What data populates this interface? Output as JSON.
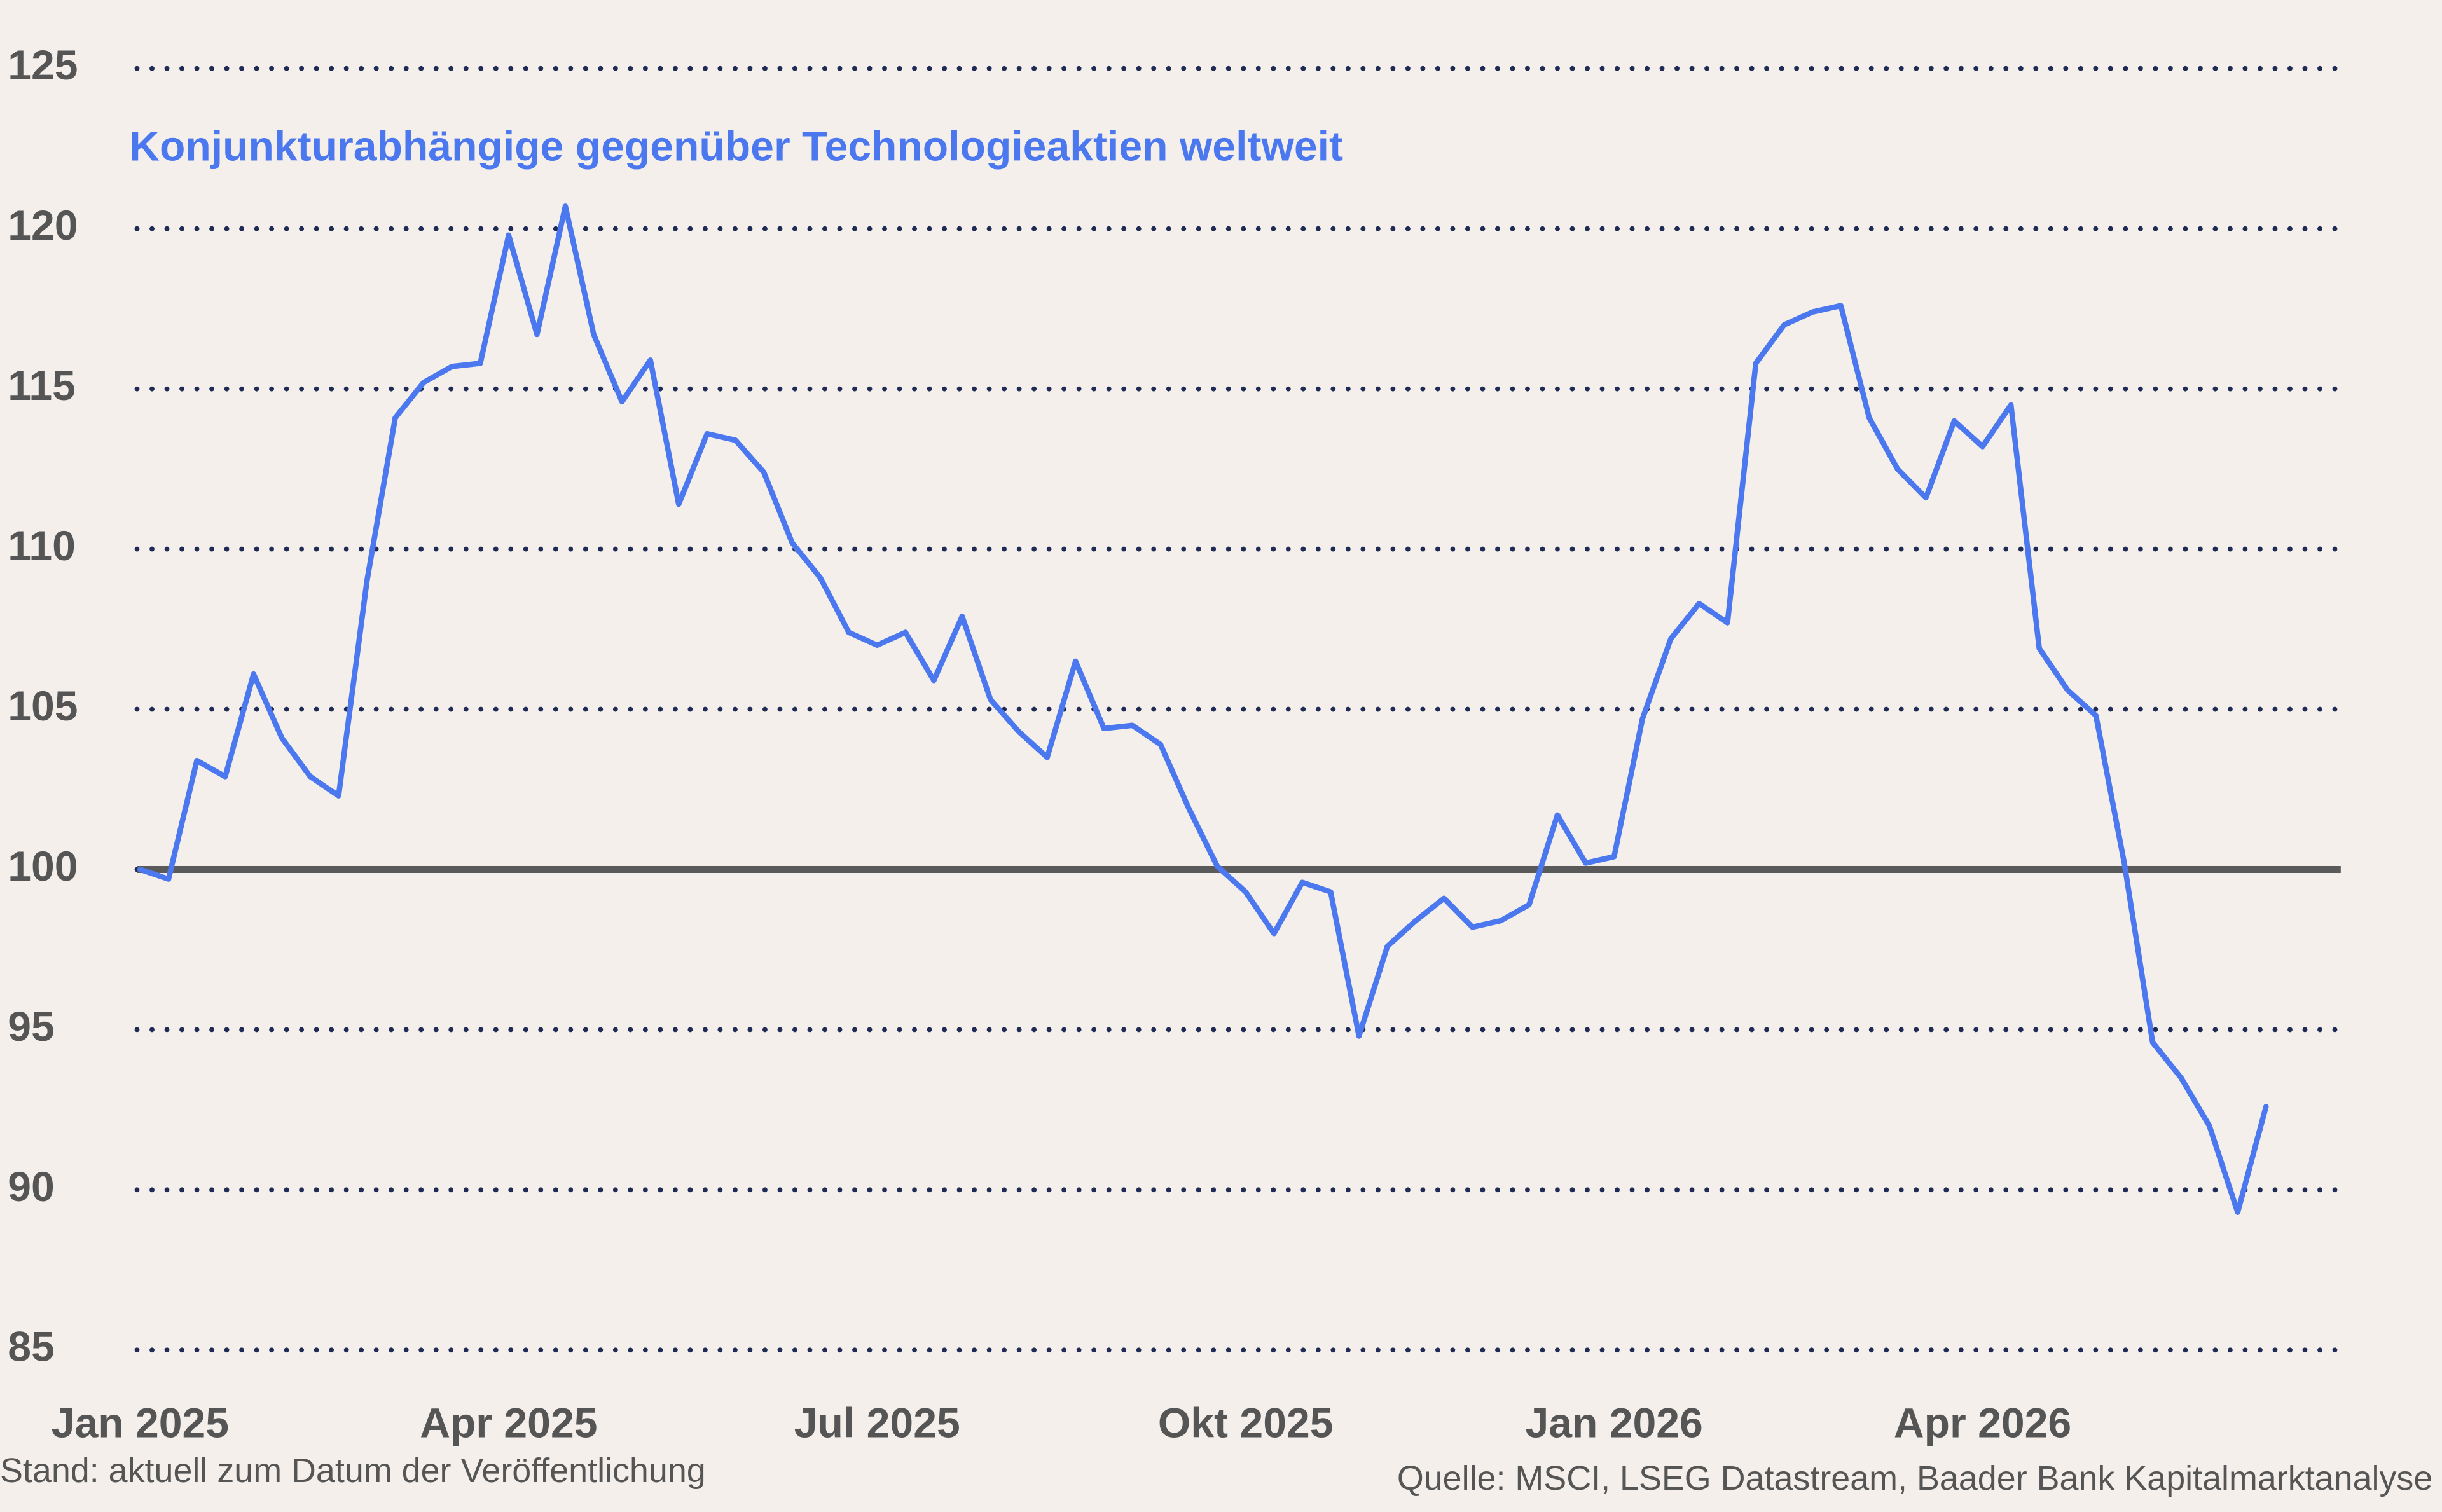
{
  "chart_data": {
    "type": "line",
    "categories": [
      "Jan 2025",
      null,
      null,
      null,
      null,
      null,
      null,
      null,
      null,
      null,
      null,
      null,
      null,
      "Apr 2025",
      null,
      null,
      null,
      null,
      null,
      null,
      null,
      null,
      null,
      null,
      null,
      null,
      "Jul 2025",
      null,
      null,
      null,
      null,
      null,
      null,
      null,
      null,
      null,
      null,
      null,
      null,
      "Okt 2025",
      null,
      null,
      null,
      null,
      null,
      null,
      null,
      null,
      null,
      null,
      null,
      null,
      "Jan 2026",
      null,
      null,
      null,
      null,
      null,
      null,
      null,
      null,
      null,
      null,
      null,
      null,
      "Apr 2026",
      null,
      null,
      null,
      null,
      null,
      null,
      null,
      null,
      null,
      null
    ],
    "series": [
      {
        "name": "Konjunkturabhängige gegenüber Technologieaktien weltweit",
        "color": "#4b78ee",
        "values": [
          100.0,
          99.7,
          103.4,
          102.9,
          106.1,
          104.1,
          102.9,
          102.3,
          109.0,
          114.1,
          115.2,
          115.7,
          115.8,
          119.8,
          116.7,
          120.7,
          116.7,
          114.6,
          115.9,
          111.4,
          113.6,
          113.4,
          112.4,
          110.2,
          109.1,
          107.4,
          107.0,
          107.4,
          105.9,
          107.9,
          105.3,
          104.3,
          103.5,
          106.5,
          104.4,
          104.5,
          103.9,
          101.9,
          100.1,
          99.3,
          98.0,
          99.6,
          99.3,
          94.8,
          97.6,
          98.4,
          99.1,
          98.2,
          98.4,
          98.9,
          101.7,
          100.2,
          100.4,
          104.7,
          107.2,
          108.3,
          107.7,
          115.8,
          117.0,
          117.4,
          117.6,
          114.1,
          112.5,
          111.6,
          114.0,
          113.2,
          114.5,
          106.9,
          105.6,
          104.8,
          100.2,
          94.6,
          93.5,
          92.0,
          89.3,
          92.6
        ]
      }
    ],
    "ylim": [
      85,
      125
    ],
    "yticks": [
      85,
      90,
      95,
      100,
      105,
      110,
      115,
      120,
      125
    ],
    "grid": true,
    "baseline": 100,
    "note": "Stand: aktuell zum Datum der Veröffentlichung",
    "source": "Quelle: MSCI, LSEG Datastream, Baader Bank Kapitalmarktanalyse"
  }
}
